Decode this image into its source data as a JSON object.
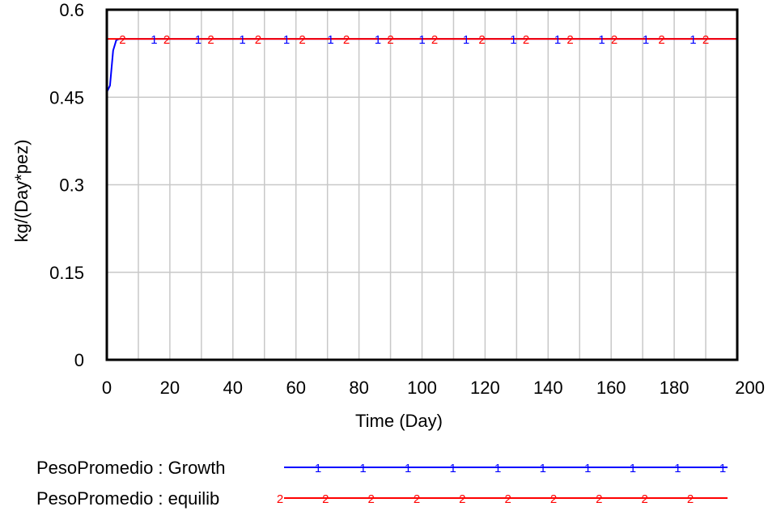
{
  "chart_data": {
    "type": "line",
    "title": "",
    "xlabel": "Time (Day)",
    "ylabel": "kg/(Day*pez)",
    "xlim": [
      0,
      200
    ],
    "ylim": [
      0,
      0.6
    ],
    "x_ticks": [
      0,
      20,
      40,
      60,
      80,
      100,
      120,
      140,
      160,
      180,
      200
    ],
    "y_ticks": [
      0,
      0.15,
      0.3,
      0.45,
      0.6
    ],
    "x_tick_labels": [
      "0",
      "20",
      "40",
      "60",
      "80",
      "100",
      "120",
      "140",
      "160",
      "180",
      "200"
    ],
    "y_tick_labels": [
      "0",
      "0.15",
      "0.3",
      "0.45",
      "0.6"
    ],
    "grid": true,
    "legend_position": "bottom",
    "series": [
      {
        "name": "PesoPromedio : Growth",
        "marker": "1",
        "color": "#0000ff",
        "x": [
          0,
          0.05,
          0.3,
          1,
          2,
          3,
          4,
          5,
          200
        ],
        "y": [
          0,
          0.46,
          0.462,
          0.47,
          0.53,
          0.548,
          0.55,
          0.55,
          0.55
        ],
        "marker_x": [
          15,
          29,
          43,
          57,
          71,
          86,
          100,
          114,
          129,
          143,
          157,
          171,
          186
        ],
        "legend_marker_count": 10
      },
      {
        "name": "PesoPromedio : equilib",
        "marker": "2",
        "color": "#ff0000",
        "x": [
          0,
          200
        ],
        "y": [
          0.55,
          0.55
        ],
        "marker_x": [
          5,
          19,
          33,
          48,
          62,
          76,
          90,
          104,
          119,
          133,
          147,
          161,
          176,
          190
        ],
        "legend_marker_count": 10
      }
    ]
  }
}
